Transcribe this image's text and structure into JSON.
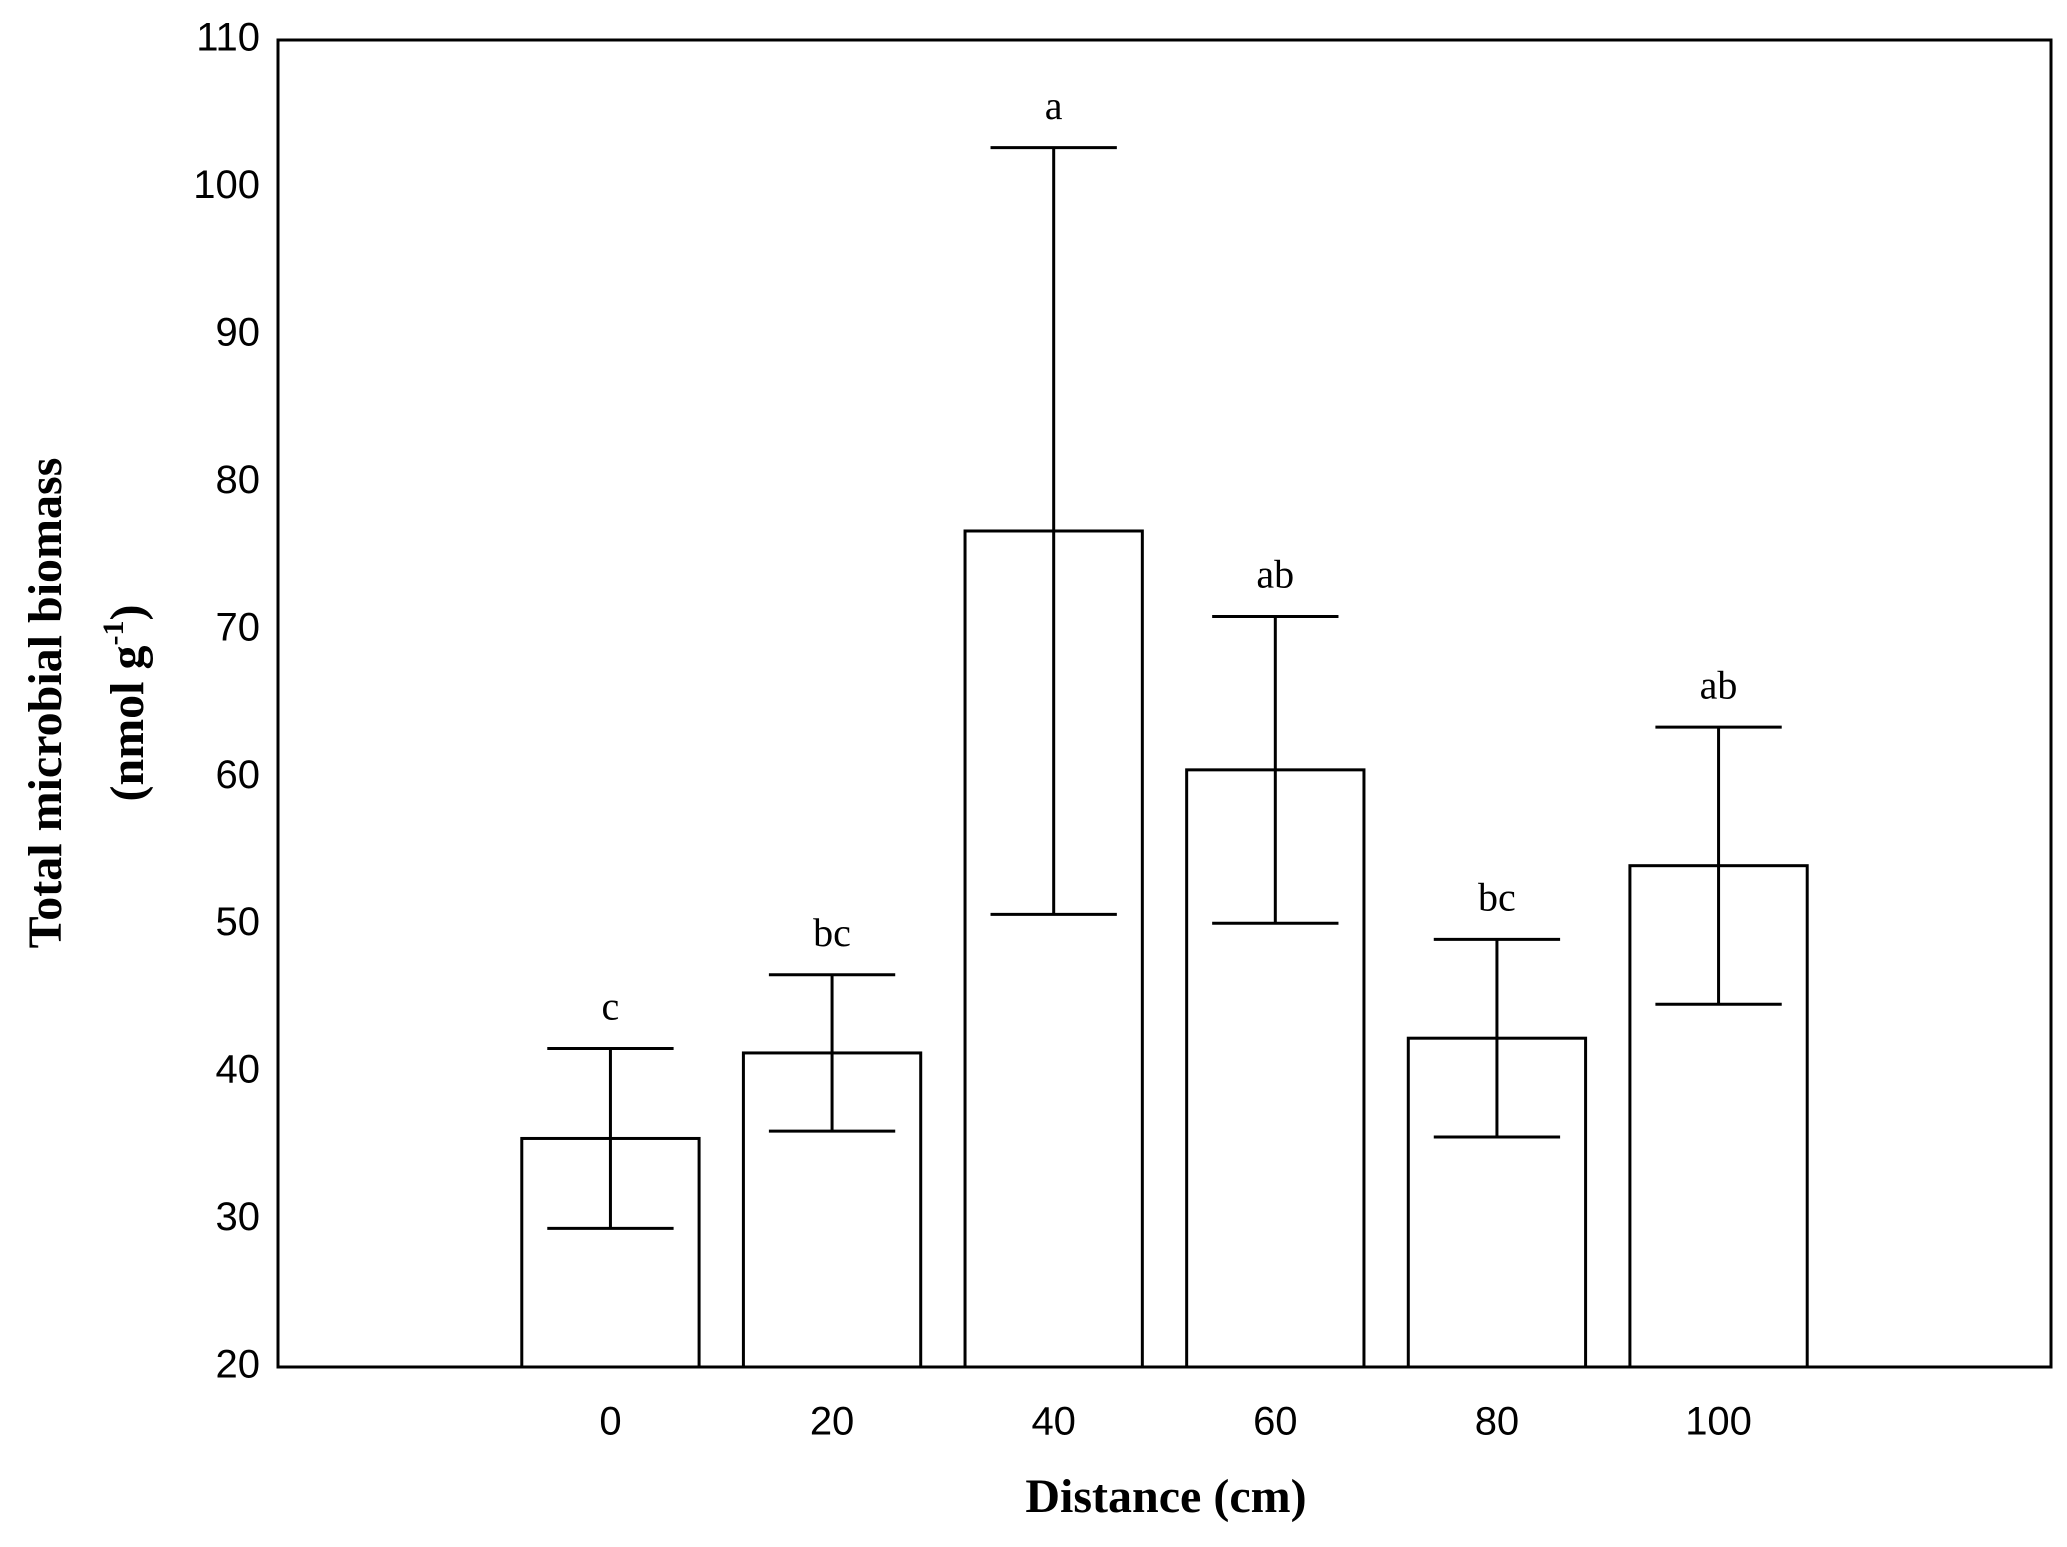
{
  "chart_data": {
    "type": "bar",
    "categories": [
      "0",
      "20",
      "40",
      "60",
      "80",
      "100"
    ],
    "values": [
      35.5,
      41.3,
      76.7,
      60.5,
      42.3,
      54
    ],
    "errors": [
      6.1,
      5.3,
      26,
      10.4,
      6.7,
      9.4
    ],
    "letters": [
      "c",
      "bc",
      "a",
      "ab",
      "bc",
      "ab"
    ],
    "color": "#ffffff",
    "ylim": [
      20,
      110
    ],
    "yticks": [
      20,
      30,
      40,
      50,
      60,
      70,
      80,
      90,
      100,
      110
    ],
    "x_label": "Distance (cm)",
    "y_label": "Total microbial biomass",
    "y_unit_parts": [
      "(nmol g",
      "-1",
      ")"
    ],
    "grid": false
  }
}
